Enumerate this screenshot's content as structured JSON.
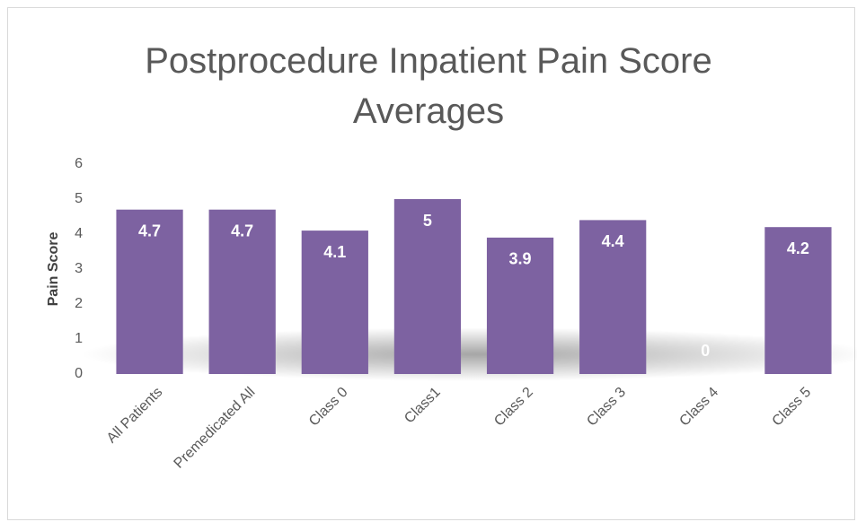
{
  "chart_data": {
    "type": "bar",
    "title": "Postprocedure Inpatient Pain Score Averages",
    "ylabel": "Pain Score",
    "categories": [
      "All Patients",
      "Premedicated All",
      "Class 0",
      "Class1",
      "Class 2",
      "Class 3",
      "Class 4",
      "Class 5"
    ],
    "values": [
      4.7,
      4.7,
      4.1,
      5,
      3.9,
      4.4,
      0,
      4.2
    ],
    "color": "#7d62a1",
    "ylim": [
      0,
      6
    ],
    "yticks": [
      0,
      1,
      2,
      3,
      4,
      5,
      6
    ],
    "grid": false
  }
}
